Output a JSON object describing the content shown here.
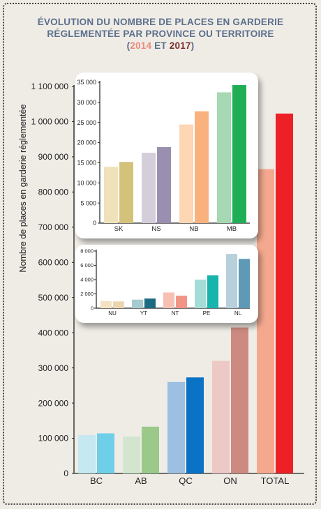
{
  "title": {
    "line1": "ÉVOLUTION DU NOMBRE DE PLACES EN GARDERIE",
    "line2": "RÉGLEMENTÉE PAR PROVINCE OU TERRITOIRE",
    "open": "(",
    "year1": "2014",
    "and": " ET ",
    "year2": "2017",
    "close": ")"
  },
  "colors": {
    "background": "#efece6",
    "year2014": "#e98b7c",
    "year2017": "#7a2f2f",
    "title": "#5b6f8c"
  },
  "chart_data": [
    {
      "type": "bar",
      "ylabel": "Nombre de places en garderie réglementée",
      "categories": [
        "BC",
        "AB",
        "QC",
        "ON",
        "TOTAL"
      ],
      "series": [
        {
          "name": "2014",
          "values": [
            109000,
            105000,
            260000,
            320000,
            865000
          ]
        },
        {
          "name": "2017",
          "values": [
            114000,
            133000,
            273000,
            415000,
            1023000
          ]
        }
      ],
      "colors_2014": [
        "#c5e8f1",
        "#d2e6cf",
        "#9dbfe2",
        "#ecc9c4",
        "#f4a98f"
      ],
      "colors_2017": [
        "#6fcfe9",
        "#9ac98a",
        "#0a73c6",
        "#cc8a80",
        "#ee2027"
      ],
      "ylim": [
        0,
        1100000
      ],
      "yticks": [
        0,
        100000,
        200000,
        300000,
        400000,
        500000,
        600000,
        700000,
        800000,
        900000,
        1000000,
        1100000
      ],
      "ytick_labels": [
        "0",
        "100 000",
        "200 000",
        "300 000",
        "400 000",
        "500 000",
        "600 000",
        "700 000",
        "800 000",
        "900 000",
        "1 000 000",
        "1 100 000"
      ]
    },
    {
      "type": "bar",
      "categories": [
        "SK",
        "NS",
        "NB",
        "MB"
      ],
      "series": [
        {
          "name": "2014",
          "values": [
            14000,
            17500,
            24500,
            32500
          ]
        },
        {
          "name": "2017",
          "values": [
            15200,
            18900,
            27800,
            34300
          ]
        }
      ],
      "colors_2014": [
        "#efe2bb",
        "#d3ced9",
        "#fdd6b4",
        "#a5d8b3"
      ],
      "colors_2017": [
        "#d5c27a",
        "#9a8fb0",
        "#f9b27d",
        "#1fae56"
      ],
      "ylim": [
        0,
        35000
      ],
      "yticks": [
        0,
        5000,
        10000,
        15000,
        20000,
        25000,
        30000,
        35000
      ],
      "ytick_labels": [
        "0",
        "5 000",
        "10 000",
        "15 000",
        "20 000",
        "25 000",
        "30 000",
        "35 000"
      ]
    },
    {
      "type": "bar",
      "categories": [
        "NU",
        "YT",
        "NT",
        "PE",
        "NL"
      ],
      "series": [
        {
          "name": "2014",
          "values": [
            1000,
            1200,
            2200,
            4000,
            7600
          ]
        },
        {
          "name": "2017",
          "values": [
            950,
            1350,
            1750,
            4600,
            6900
          ]
        }
      ],
      "colors_2014": [
        "#f3e2c3",
        "#a6cbd1",
        "#f6c1b4",
        "#a4dcd7",
        "#b8cfdc"
      ],
      "colors_2017": [
        "#ead6b0",
        "#1c6b82",
        "#f29485",
        "#17b3ad",
        "#5e9ab6"
      ],
      "ylim": [
        0,
        8000
      ],
      "yticks": [
        0,
        2000,
        4000,
        6000,
        8000
      ],
      "ytick_labels": [
        "0",
        "2 000",
        "4 000",
        "6 000",
        "8 000"
      ]
    }
  ]
}
